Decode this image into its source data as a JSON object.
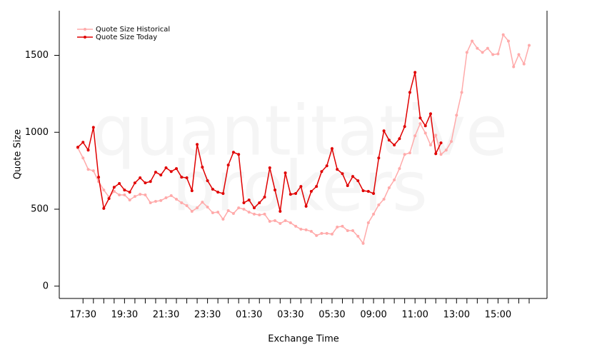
{
  "chart_data": {
    "type": "line",
    "watermark": [
      "quantitative",
      "brokers"
    ],
    "xlabel": "Exchange Time",
    "ylabel": "Quote Size",
    "categories": [
      null,
      "17:30",
      null,
      null,
      null,
      null,
      null,
      null,
      null,
      "19:30",
      null,
      null,
      null,
      null,
      null,
      null,
      null,
      "21:30",
      null,
      null,
      null,
      null,
      null,
      null,
      null,
      "23:30",
      null,
      null,
      null,
      null,
      null,
      null,
      null,
      "01:30",
      null,
      null,
      null,
      null,
      null,
      null,
      null,
      "03:30",
      null,
      null,
      null,
      null,
      null,
      null,
      null,
      "05:30",
      null,
      null,
      null,
      null,
      null,
      null,
      null,
      "09:00",
      null,
      null,
      null,
      null,
      null,
      null,
      null,
      "11:00",
      null,
      null,
      null,
      null,
      null,
      null,
      null,
      "13:00",
      null,
      null,
      null,
      null,
      null,
      null,
      null,
      "15:00",
      null,
      null,
      null,
      null,
      null,
      null
    ],
    "series": [
      {
        "name": "Quote Size Historical",
        "color": "#ffaaaa",
        "values": [
          898,
          833,
          759,
          750,
          680,
          625,
          579,
          616,
          593,
          593,
          560,
          583,
          597,
          593,
          542,
          551,
          556,
          574,
          588,
          565,
          542,
          523,
          486,
          509,
          546,
          514,
          477,
          481,
          435,
          491,
          472,
          509,
          500,
          481,
          468,
          463,
          468,
          421,
          426,
          407,
          426,
          412,
          389,
          370,
          366,
          356,
          329,
          343,
          343,
          338,
          384,
          389,
          361,
          361,
          324,
          278,
          412,
          468,
          528,
          565,
          639,
          690,
          764,
          856,
          866,
          977,
          1056,
          995,
          917,
          981,
          856,
          884,
          940,
          1111,
          1259,
          1519,
          1593,
          1546,
          1519,
          1546,
          1505,
          1509,
          1634,
          1593,
          1426,
          1505,
          1444,
          1565
        ]
      },
      {
        "name": "Quote Size Today",
        "color": "#e00000",
        "values": [
          903,
          935,
          884,
          1032,
          708,
          505,
          569,
          643,
          667,
          625,
          611,
          671,
          704,
          671,
          680,
          741,
          722,
          769,
          745,
          764,
          708,
          704,
          620,
          921,
          773,
          685,
          630,
          611,
          602,
          787,
          870,
          856,
          542,
          560,
          509,
          542,
          579,
          769,
          625,
          486,
          736,
          597,
          602,
          648,
          519,
          616,
          648,
          745,
          782,
          894,
          759,
          731,
          653,
          713,
          685,
          620,
          616,
          602,
          833,
          1009,
          949,
          917,
          958,
          1037,
          1259,
          1389,
          1093,
          1042,
          1120,
          861,
          931,
          null,
          null,
          null,
          null,
          null,
          null,
          null,
          null,
          null,
          null,
          null,
          null,
          null,
          null,
          null,
          null,
          null
        ]
      }
    ],
    "ylim": [
      -80,
      1790
    ],
    "yticks": [
      0,
      500,
      1000,
      1500
    ],
    "legend": "top-left"
  }
}
